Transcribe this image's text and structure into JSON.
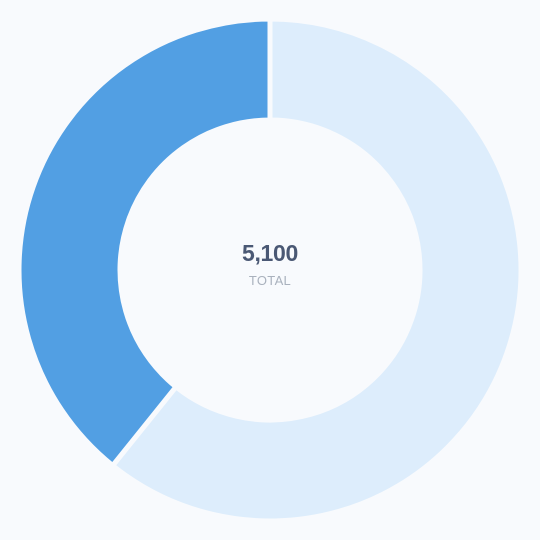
{
  "chart_data": {
    "type": "pie",
    "donut": true,
    "title": "",
    "categories": [
      "",
      ""
    ],
    "values": [
      3100,
      2000
    ],
    "colors": [
      "#ddedfc",
      "#529fe3"
    ],
    "legend": "none"
  },
  "center": {
    "total_value": "5,100",
    "total_label": "TOTAL"
  },
  "colors": {
    "background": "#f8fafd",
    "segment_separator": "#f8fafd"
  }
}
